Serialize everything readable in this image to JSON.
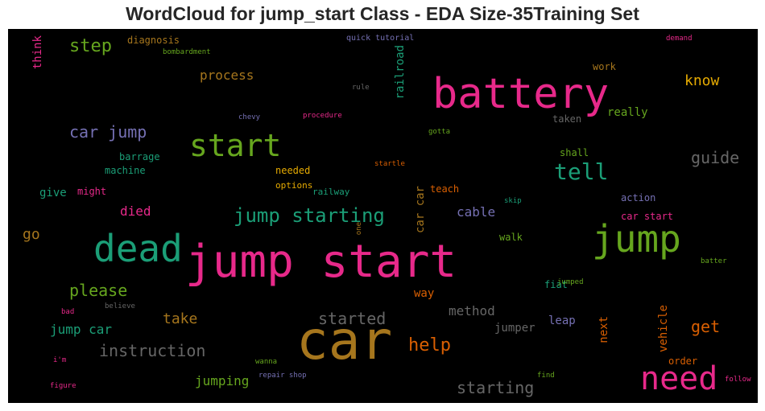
{
  "chart_data": {
    "type": "wordcloud",
    "title": "WordCloud for jump_start Class - EDA Size-35Training Set",
    "background": "#000000",
    "words": [
      {
        "text": "jump start",
        "color": "#e7298a"
      },
      {
        "text": "car",
        "color": "#a6761d"
      },
      {
        "text": "battery",
        "color": "#e7298a"
      },
      {
        "text": "dead",
        "color": "#1b9e77"
      },
      {
        "text": "jump",
        "color": "#66a61e"
      },
      {
        "text": "need",
        "color": "#e7298a"
      },
      {
        "text": "start",
        "color": "#66a61e"
      },
      {
        "text": "tell",
        "color": "#1b9e77"
      },
      {
        "text": "jump starting",
        "color": "#1b9e77"
      },
      {
        "text": "car jump",
        "color": "#7570b3"
      },
      {
        "text": "instruction",
        "color": "#666666"
      },
      {
        "text": "started",
        "color": "#666666"
      },
      {
        "text": "help",
        "color": "#d95f02"
      },
      {
        "text": "starting",
        "color": "#666666"
      },
      {
        "text": "guide",
        "color": "#666666"
      },
      {
        "text": "step",
        "color": "#66a61e"
      },
      {
        "text": "know",
        "color": "#e6ab02"
      },
      {
        "text": "please",
        "color": "#66a61e"
      },
      {
        "text": "get",
        "color": "#d95f02"
      },
      {
        "text": "process",
        "color": "#a6761d"
      },
      {
        "text": "take",
        "color": "#a6761d"
      },
      {
        "text": "method",
        "color": "#666666"
      },
      {
        "text": "jump car",
        "color": "#1b9e77"
      },
      {
        "text": "died",
        "color": "#e7298a"
      },
      {
        "text": "cable",
        "color": "#7570b3"
      },
      {
        "text": "jumping",
        "color": "#66a61e"
      },
      {
        "text": "jumper",
        "color": "#666666"
      },
      {
        "text": "leap",
        "color": "#7570b3"
      },
      {
        "text": "go",
        "color": "#a6761d"
      },
      {
        "text": "give",
        "color": "#1b9e77"
      },
      {
        "text": "way",
        "color": "#d95f02"
      },
      {
        "text": "really",
        "color": "#66a61e"
      },
      {
        "text": "car car",
        "color": "#a6761d"
      },
      {
        "text": "think",
        "color": "#e7298a"
      },
      {
        "text": "railroad",
        "color": "#1b9e77"
      },
      {
        "text": "next",
        "color": "#d95f02"
      },
      {
        "text": "vehicle",
        "color": "#d95f02"
      },
      {
        "text": "diagnosis",
        "color": "#a6761d"
      },
      {
        "text": "work",
        "color": "#a6761d"
      },
      {
        "text": "taken",
        "color": "#666666"
      },
      {
        "text": "barrage",
        "color": "#1b9e77"
      },
      {
        "text": "machine",
        "color": "#1b9e77"
      },
      {
        "text": "needed",
        "color": "#e6ab02"
      },
      {
        "text": "teach",
        "color": "#d95f02"
      },
      {
        "text": "shall",
        "color": "#66a61e"
      },
      {
        "text": "action",
        "color": "#7570b3"
      },
      {
        "text": "car start",
        "color": "#e7298a"
      },
      {
        "text": "walk",
        "color": "#66a61e"
      },
      {
        "text": "fiat",
        "color": "#1b9e77"
      },
      {
        "text": "order",
        "color": "#d95f02"
      },
      {
        "text": "might",
        "color": "#e7298a"
      },
      {
        "text": "options",
        "color": "#e6ab02"
      },
      {
        "text": "railway",
        "color": "#1b9e77"
      },
      {
        "text": "quick tutorial",
        "color": "#7570b3"
      },
      {
        "text": "bombardment",
        "color": "#66a61e"
      },
      {
        "text": "demand",
        "color": "#e7298a"
      },
      {
        "text": "rule",
        "color": "#666666"
      },
      {
        "text": "chevy",
        "color": "#7570b3"
      },
      {
        "text": "procedure",
        "color": "#e7298a"
      },
      {
        "text": "gotta",
        "color": "#66a61e"
      },
      {
        "text": "startle",
        "color": "#d95f02"
      },
      {
        "text": "skip",
        "color": "#1b9e77"
      },
      {
        "text": "one",
        "color": "#a6761d"
      },
      {
        "text": "batter",
        "color": "#66a61e"
      },
      {
        "text": "jumped",
        "color": "#66a61e"
      },
      {
        "text": "bad",
        "color": "#e7298a"
      },
      {
        "text": "believe",
        "color": "#666666"
      },
      {
        "text": "i'm",
        "color": "#e7298a"
      },
      {
        "text": "wanna",
        "color": "#66a61e"
      },
      {
        "text": "repair shop",
        "color": "#7570b3"
      },
      {
        "text": "figure",
        "color": "#e7298a"
      },
      {
        "text": "find",
        "color": "#66a61e"
      },
      {
        "text": "follow",
        "color": "#e7298a"
      }
    ]
  }
}
